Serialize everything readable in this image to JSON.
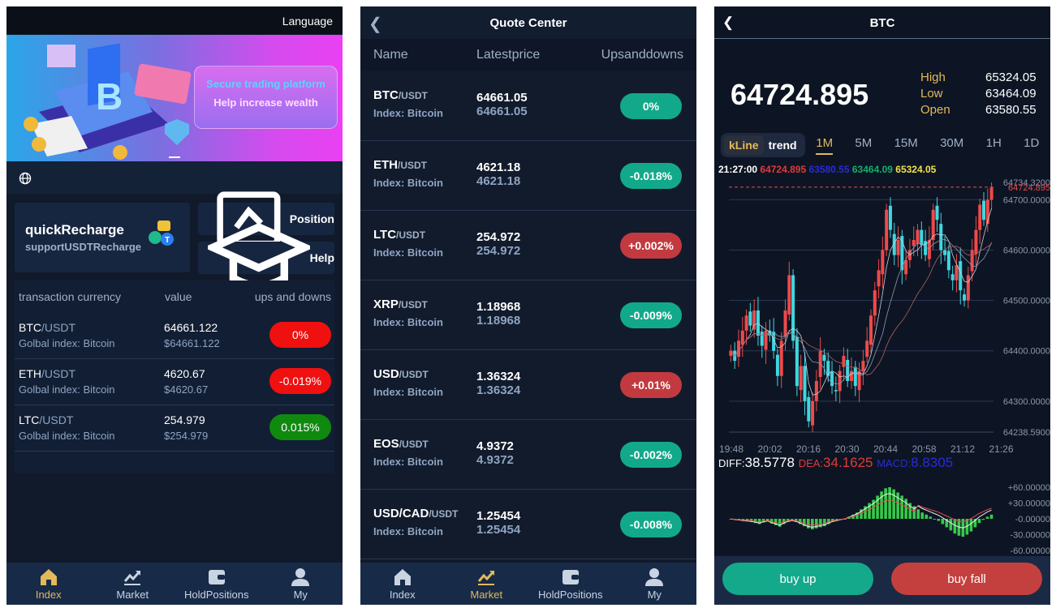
{
  "screen1": {
    "language_label": "Language",
    "banner": {
      "line1": "Secure trading platform",
      "line2": "Help increase wealth"
    },
    "quick_recharge": {
      "title": "quickRecharge",
      "subtitle": "supportUSDTRecharge"
    },
    "position_label": "Position",
    "help_label": "Help",
    "table": {
      "headers": [
        "transaction currency",
        "value",
        "ups and downs"
      ],
      "rows": [
        {
          "base": "BTC",
          "quote": "/USDT",
          "sub": "Golbal index: Bitcoin",
          "value": "64661.122",
          "usd": "$64661.122",
          "change": "0%",
          "color": "#f01010"
        },
        {
          "base": "ETH",
          "quote": "/USDT",
          "sub": "Golbal index: Bitcoin",
          "value": "4620.67",
          "usd": "$4620.67",
          "change": "-0.019%",
          "color": "#f01010"
        },
        {
          "base": "LTC",
          "quote": "/USDT",
          "sub": "Golbal index: Bitcoin",
          "value": "254.979",
          "usd": "$254.979",
          "change": "0.015%",
          "color": "#0f8a0f"
        }
      ]
    },
    "tabs": [
      {
        "label": "Index",
        "icon": "home-icon"
      },
      {
        "label": "Market",
        "icon": "chart-icon"
      },
      {
        "label": "HoldPositions",
        "icon": "wallet-icon"
      },
      {
        "label": "My",
        "icon": "user-icon"
      }
    ],
    "active_tab": "Index"
  },
  "screen2": {
    "title": "Quote Center",
    "columns": [
      "Name",
      "Latestprice",
      "Upsanddowns"
    ],
    "rows": [
      {
        "base": "BTC",
        "quote": "/USDT",
        "index": "Index:  Bitcoin",
        "price": "64661.05",
        "price2": "64661.05",
        "change": "0%",
        "color": "#12a98a"
      },
      {
        "base": "ETH",
        "quote": "/USDT",
        "index": "Index:  Bitcoin",
        "price": "4621.18",
        "price2": "4621.18",
        "change": "-0.018%",
        "color": "#12a98a"
      },
      {
        "base": "LTC",
        "quote": "/USDT",
        "index": "Index:  Bitcoin",
        "price": "254.972",
        "price2": "254.972",
        "change": "+0.002%",
        "color": "#c23a3f"
      },
      {
        "base": "XRP",
        "quote": "/USDT",
        "index": "Index:  Bitcoin",
        "price": "1.18968",
        "price2": "1.18968",
        "change": "-0.009%",
        "color": "#12a98a"
      },
      {
        "base": "USD",
        "quote": "/USDT",
        "index": "Index:  Bitcoin",
        "price": "1.36324",
        "price2": "1.36324",
        "change": "+0.01%",
        "color": "#c23a3f"
      },
      {
        "base": "EOS",
        "quote": "/USDT",
        "index": "Index:  Bitcoin",
        "price": "4.9372",
        "price2": "4.9372",
        "change": "-0.002%",
        "color": "#12a98a"
      },
      {
        "base": "USD/CAD",
        "quote": "/USDT",
        "index": "Index:  Bitcoin",
        "price": "1.25454",
        "price2": "1.25454",
        "change": "-0.008%",
        "color": "#12a98a"
      }
    ],
    "tabs": [
      {
        "label": "Index",
        "icon": "home-icon"
      },
      {
        "label": "Market",
        "icon": "chart-icon"
      },
      {
        "label": "HoldPositions",
        "icon": "wallet-icon"
      },
      {
        "label": "My",
        "icon": "user-icon"
      }
    ],
    "active_tab": "Market"
  },
  "screen3": {
    "title": "BTC",
    "price": "64724.895",
    "stats": [
      {
        "label": "High",
        "value": "65324.05"
      },
      {
        "label": "Low",
        "value": "63464.09"
      },
      {
        "label": "Open",
        "value": "63580.55"
      }
    ],
    "toggles": [
      "kLine",
      "trend"
    ],
    "active_toggle": "kLine",
    "timeframes": [
      "1M",
      "5M",
      "15M",
      "30M",
      "1H",
      "1D"
    ],
    "active_timeframe": "1M",
    "legend": {
      "time": "21:27:00",
      "v1": "64724.895",
      "v2": "63580.55",
      "v3": "63464.09",
      "v4": "65324.05"
    },
    "legend_colors": {
      "v1": "#e03a3a",
      "v2": "#2a2ad8",
      "v3": "#12b06a",
      "v4": "#f2e24a"
    },
    "macd": {
      "diff_label": "DIFF:",
      "diff": "38.5778",
      "dea_label": "DEA:",
      "dea": "34.1625",
      "macd_label": "MACD:",
      "macd": "8.8305"
    },
    "buy_up_label": "buy up",
    "buy_fall_label": "buy fall",
    "colors": {
      "up": "#ef4a4a",
      "down": "#3fd7e0",
      "buy_up": "#14a98b",
      "buy_fall": "#c4403f"
    }
  },
  "chart_data": {
    "type": "candlestick",
    "x_tick_labels": [
      "19:48",
      "20:02",
      "20:16",
      "20:30",
      "20:44",
      "20:58",
      "21:12",
      "21:26"
    ],
    "y_tick_labels": [
      "64734.3200",
      "64724.895",
      "64700.0000",
      "64600.0000",
      "64500.0000",
      "64400.0000",
      "64300.0000",
      "64238.5900"
    ],
    "ylim": [
      64238.59,
      64734.32
    ],
    "close": [
      64400,
      64380,
      64420,
      64440,
      64470,
      64450,
      64480,
      64430,
      64410,
      64440,
      64430,
      64400,
      64350,
      64420,
      64480,
      64550,
      64420,
      64330,
      64370,
      64300,
      64260,
      64300,
      64340,
      64400,
      64380,
      64350,
      64330,
      64320,
      64360,
      64390,
      64340,
      64360,
      64330,
      64360,
      64380,
      64420,
      64470,
      64520,
      64560,
      64600,
      64680,
      64640,
      64590,
      64620,
      64560,
      64580,
      64600,
      64620,
      64640,
      64610,
      64590,
      64620,
      64680,
      64660,
      64600,
      64590,
      64560,
      64540,
      64570,
      64520,
      64500,
      64550,
      64600,
      64640,
      64690,
      64660,
      64700,
      64724
    ],
    "macd_axis": [
      "+60.00000",
      "+30.00000",
      "-0.00000",
      "-30.00000",
      "-60.00000"
    ],
    "macd_hist": [
      0,
      -2,
      -3,
      -4,
      -5,
      -6,
      -8,
      -10,
      -7,
      -5,
      -9,
      -12,
      -15,
      -10,
      -6,
      -4,
      -6,
      -10,
      -14,
      -18,
      -20,
      -18,
      -16,
      -14,
      -10,
      -6,
      -4,
      -2,
      0,
      4,
      8,
      12,
      18,
      24,
      30,
      36,
      44,
      52,
      58,
      60,
      56,
      50,
      44,
      38,
      30,
      24,
      18,
      12,
      8,
      4,
      0,
      -4,
      -10,
      -16,
      -22,
      -28,
      -32,
      -34,
      -30,
      -24,
      -16,
      -8,
      -2,
      4,
      8
    ]
  }
}
